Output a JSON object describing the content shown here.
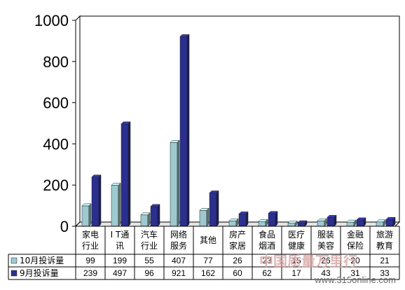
{
  "chart_data": {
    "type": "bar",
    "categories": [
      [
        "家电",
        "行业"
      ],
      [
        "I T通",
        "讯"
      ],
      [
        "汽车",
        "行业"
      ],
      [
        "网络",
        "服务"
      ],
      [
        "其他"
      ],
      [
        "房产",
        "家居"
      ],
      [
        "食品",
        "烟酒"
      ],
      [
        "医疗",
        "健康"
      ],
      [
        "服装",
        "美容"
      ],
      [
        "金融",
        "保险"
      ],
      [
        "旅游",
        "教育"
      ]
    ],
    "series": [
      {
        "name": "10月投诉量",
        "color": "#9ec9cf",
        "values": [
          99,
          199,
          55,
          407,
          77,
          26,
          23,
          15,
          26,
          20,
          21
        ]
      },
      {
        "name": "9月投诉量",
        "color": "#2b2f8f",
        "values": [
          239,
          497,
          96,
          921,
          162,
          60,
          62,
          17,
          43,
          31,
          33
        ]
      }
    ],
    "yticks": [
      0,
      200,
      400,
      600,
      800,
      1000
    ],
    "ylim": [
      0,
      1000
    ],
    "grid": false,
    "legend": "table-left",
    "watermark": {
      "text": "中国质量万里行",
      "url": "www.315online.com"
    }
  }
}
